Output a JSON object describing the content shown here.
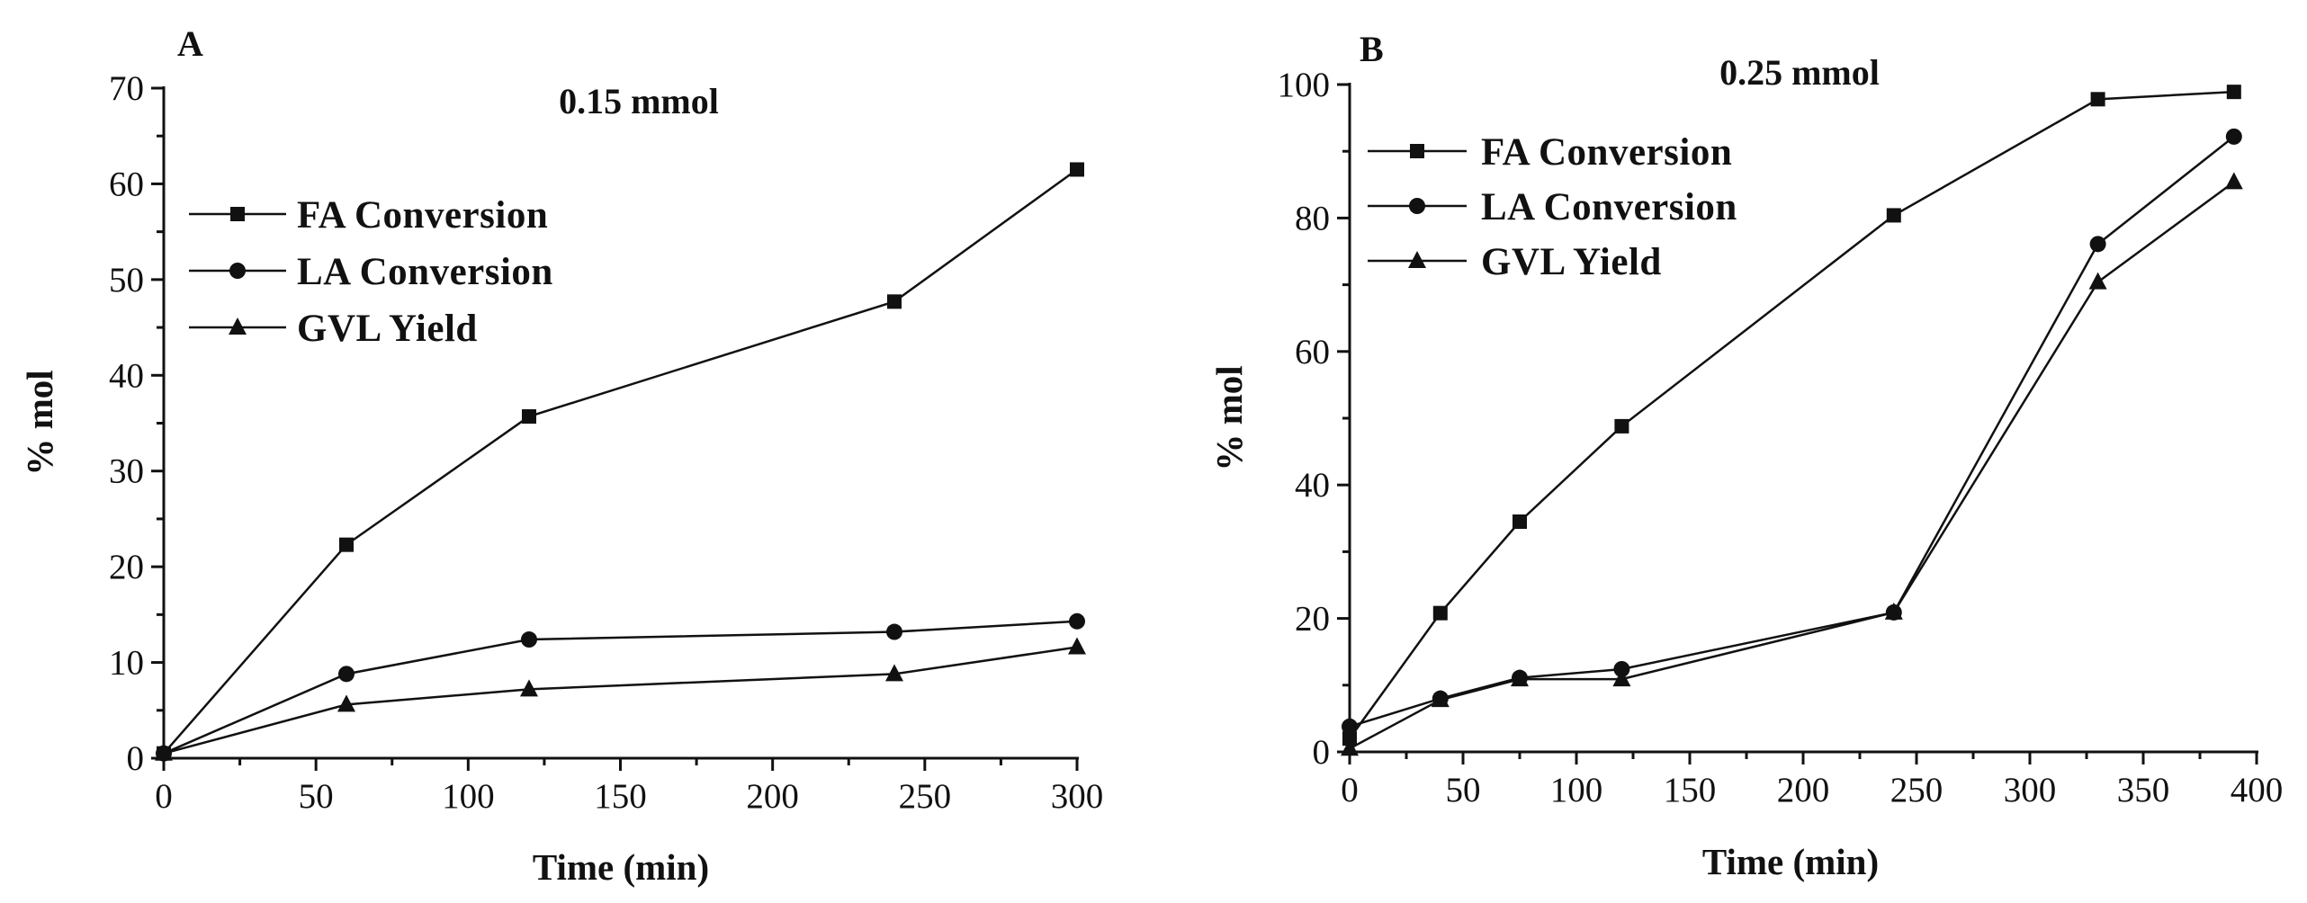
{
  "chart_data": [
    {
      "panel": "A",
      "type": "line",
      "title": "0.15 mmol",
      "xlabel": "Time (min)",
      "ylabel": "% mol",
      "xlim": [
        0,
        300
      ],
      "ylim": [
        0,
        70
      ],
      "xticks": [
        0,
        50,
        100,
        150,
        200,
        250,
        300
      ],
      "yticks": [
        0,
        10,
        20,
        30,
        40,
        50,
        60,
        70
      ],
      "legend_position": "upper-left",
      "series": [
        {
          "name": "FA Conversion",
          "marker": "square",
          "x": [
            0,
            60,
            120,
            240,
            300
          ],
          "values": [
            0.5,
            22.3,
            35.7,
            47.7,
            61.5
          ]
        },
        {
          "name": "LA Conversion",
          "marker": "circle",
          "x": [
            0,
            60,
            120,
            240,
            300
          ],
          "values": [
            0.5,
            8.8,
            12.4,
            13.2,
            14.3
          ]
        },
        {
          "name": "GVL Yield",
          "marker": "triangle",
          "x": [
            0,
            60,
            120,
            240,
            300
          ],
          "values": [
            0.5,
            5.6,
            7.2,
            8.8,
            11.6
          ]
        }
      ]
    },
    {
      "panel": "B",
      "type": "line",
      "title": "0.25 mmol",
      "xlabel": "Time (min)",
      "ylabel": "% mol",
      "xlim": [
        0,
        400
      ],
      "ylim": [
        0,
        100
      ],
      "xticks": [
        0,
        50,
        100,
        150,
        200,
        250,
        300,
        350,
        400
      ],
      "yticks": [
        0,
        20,
        40,
        60,
        80,
        100
      ],
      "legend_position": "upper-left",
      "series": [
        {
          "name": "FA Conversion",
          "marker": "square",
          "x": [
            0,
            40,
            75,
            120,
            240,
            330,
            390
          ],
          "values": [
            2.0,
            20.8,
            34.5,
            48.8,
            80.4,
            97.8,
            98.9
          ]
        },
        {
          "name": "LA Conversion",
          "marker": "circle",
          "x": [
            0,
            40,
            75,
            120,
            240,
            330,
            390
          ],
          "values": [
            3.8,
            8.0,
            11.1,
            12.4,
            20.9,
            76.1,
            92.2
          ]
        },
        {
          "name": "GVL Yield",
          "marker": "triangle",
          "x": [
            0,
            40,
            75,
            120,
            240,
            330,
            390
          ],
          "values": [
            0.5,
            7.8,
            10.9,
            10.9,
            20.9,
            70.4,
            85.4
          ]
        }
      ]
    }
  ]
}
